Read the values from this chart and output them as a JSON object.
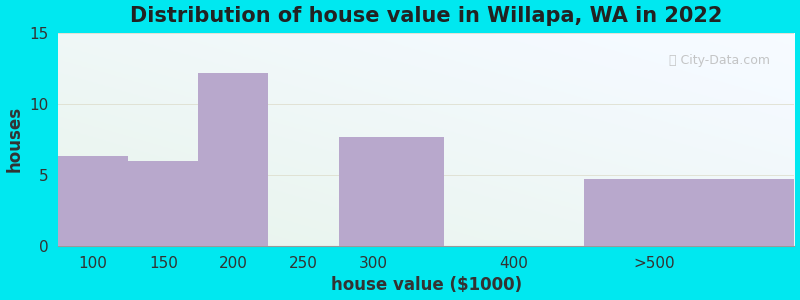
{
  "title": "Distribution of house value in Willapa, WA in 2022",
  "xlabel": "house value ($1000)",
  "ylabel": "houses",
  "bin_edges": [
    75,
    125,
    175,
    225,
    275,
    350,
    450,
    600
  ],
  "tick_positions": [
    100,
    150,
    200,
    250,
    300,
    400,
    500
  ],
  "tick_labels": [
    "100",
    "150",
    "200",
    "250",
    "300",
    "400",
    ">500"
  ],
  "values": [
    6.3,
    6.0,
    12.2,
    0,
    7.7,
    0,
    4.7
  ],
  "bar_color": "#b8a8cc",
  "ylim": [
    0,
    15
  ],
  "yticks": [
    0,
    5,
    10,
    15
  ],
  "background_outer": "#00e8f0",
  "title_fontsize": 15,
  "label_fontsize": 12,
  "tick_fontsize": 11
}
